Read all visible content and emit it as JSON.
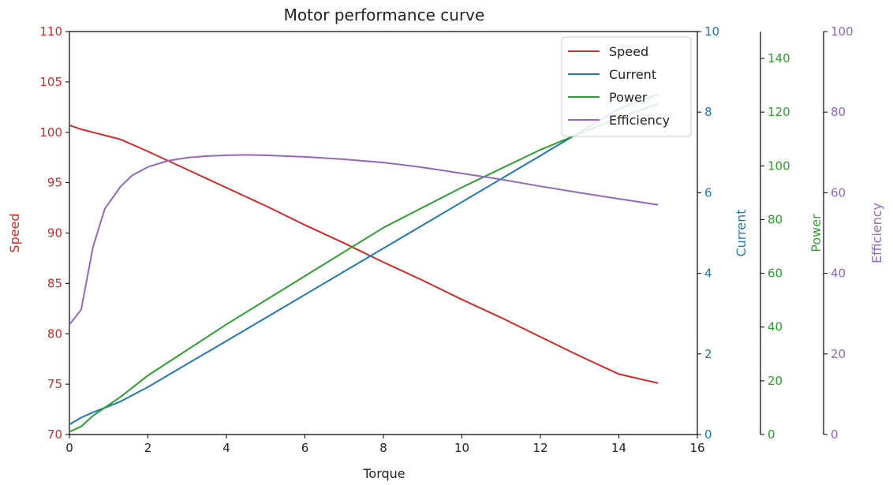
{
  "chart_data": {
    "type": "line",
    "title": "Motor performance curve",
    "xlabel": "Torque",
    "xlim": [
      0,
      16
    ],
    "xticks": [
      0,
      2,
      4,
      6,
      8,
      10,
      12,
      14,
      16
    ],
    "grid": false,
    "legend_position": "top-right",
    "axes": [
      {
        "key": "speed",
        "label": "Speed",
        "color": "#d62728",
        "lim": [
          70,
          110
        ],
        "ticks": [
          70,
          75,
          80,
          85,
          90,
          95,
          100,
          105,
          110
        ],
        "side": "left"
      },
      {
        "key": "current",
        "label": "Current",
        "color": "#1f77b4",
        "lim": [
          0,
          10
        ],
        "ticks": [
          0,
          2,
          4,
          6,
          8,
          10
        ],
        "side": "right"
      },
      {
        "key": "power",
        "label": "Power",
        "color": "#2ca02c",
        "lim": [
          0,
          150
        ],
        "ticks": [
          0,
          20,
          40,
          60,
          80,
          100,
          120,
          140
        ],
        "side": "right-offset-1"
      },
      {
        "key": "efficiency",
        "label": "Efficiency",
        "color": "#9467bd",
        "lim": [
          0,
          100
        ],
        "ticks": [
          0,
          20,
          40,
          60,
          80,
          100
        ],
        "side": "right-offset-2"
      }
    ],
    "series": [
      {
        "name": "Speed",
        "axis": "speed",
        "color": "#d62728",
        "x": [
          0,
          0.3,
          0.6,
          1.0,
          1.3,
          2.0,
          3.0,
          4.0,
          5.0,
          6.0,
          7.0,
          8.0,
          9.0,
          10.0,
          11.0,
          12.0,
          13.0,
          14.0,
          15.0
        ],
        "y": [
          100.7,
          100.3,
          100.0,
          99.6,
          99.3,
          98.1,
          96.3,
          94.5,
          92.7,
          90.8,
          89.0,
          87.1,
          85.3,
          83.4,
          81.6,
          79.7,
          77.8,
          76.0,
          75.1
        ]
      },
      {
        "name": "Current",
        "axis": "current",
        "color": "#1f77b4",
        "x": [
          0,
          0.3,
          0.6,
          1.0,
          1.3,
          2.0,
          4.0,
          6.0,
          8.0,
          10.0,
          12.0,
          14.0,
          15.0
        ],
        "y": [
          0.25,
          0.42,
          0.55,
          0.7,
          0.82,
          1.18,
          2.32,
          3.47,
          4.62,
          5.77,
          6.92,
          8.08,
          8.45
        ]
      },
      {
        "name": "Power",
        "axis": "power",
        "color": "#2ca02c",
        "x": [
          0,
          0.3,
          0.6,
          1.0,
          1.3,
          2.0,
          4.0,
          6.0,
          8.0,
          10.0,
          12.0,
          14.0,
          15.0
        ],
        "y": [
          1,
          3,
          7,
          11,
          14,
          22,
          41,
          59,
          77,
          92,
          106,
          118,
          123
        ]
      },
      {
        "name": "Efficiency",
        "axis": "efficiency",
        "color": "#9467bd",
        "x": [
          0.02,
          0.3,
          0.6,
          0.9,
          1.3,
          1.6,
          2.0,
          2.5,
          3.0,
          3.5,
          4.0,
          4.5,
          5.0,
          6.0,
          7.0,
          8.0,
          9.0,
          10.0,
          11.0,
          12.0,
          13.0,
          14.0,
          15.0
        ],
        "y": [
          27.5,
          31,
          46.5,
          56,
          61.5,
          64.3,
          66.4,
          67.9,
          68.7,
          69.1,
          69.3,
          69.4,
          69.3,
          68.9,
          68.3,
          67.5,
          66.3,
          64.8,
          63.3,
          61.6,
          60.0,
          58.5,
          57.0
        ]
      }
    ]
  }
}
